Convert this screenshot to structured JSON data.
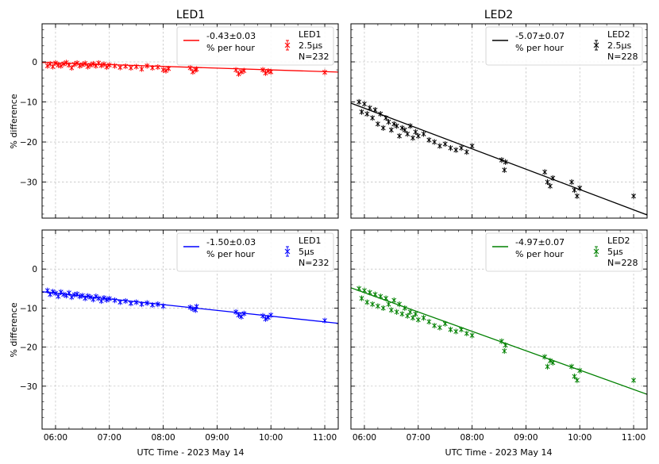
{
  "figure": {
    "xlabel": "UTC Time - 2023 May 14",
    "ylabel": "% difference",
    "col_titles": [
      "LED1",
      "LED2"
    ]
  },
  "chart_data": [
    {
      "type": "scatter",
      "title": "LED1",
      "color": "#ff0000",
      "legend": {
        "slope_text": "-0.43±0.03",
        "unit_text": "% per hour",
        "led": "LED1",
        "width": "2.5μs",
        "n": "N=232"
      },
      "slope": -0.43,
      "xlim": [
        5.75,
        11.25
      ],
      "ylim": [
        -39,
        9.5
      ],
      "x_ticks": [
        6,
        7,
        8,
        9,
        10,
        11
      ],
      "x_tick_labels": [
        "06:00",
        "07:00",
        "08:00",
        "09:00",
        "10:00",
        "11:00"
      ],
      "y_ticks": [
        0,
        -10,
        -20,
        -30
      ],
      "y_tick_labels": [
        "0",
        "−10",
        "−20",
        "−30"
      ],
      "fit_line": {
        "x": [
          5.75,
          11.25
        ],
        "y": [
          -0.15,
          -2.55
        ]
      },
      "series": [
        {
          "name": "LED1 2.5μs N=232 (sampled)",
          "x": [
            5.85,
            5.9,
            5.95,
            6.0,
            6.05,
            6.1,
            6.15,
            6.2,
            6.25,
            6.3,
            6.35,
            6.4,
            6.45,
            6.5,
            6.55,
            6.6,
            6.65,
            6.7,
            6.75,
            6.8,
            6.85,
            6.9,
            6.95,
            7.0,
            7.1,
            7.2,
            7.3,
            7.4,
            7.5,
            7.6,
            7.7,
            7.8,
            7.9,
            8.0,
            8.05,
            8.1,
            8.5,
            8.55,
            8.6,
            8.62,
            9.35,
            9.4,
            9.45,
            9.5,
            9.85,
            9.9,
            9.95,
            10.0,
            11.0
          ],
          "y": [
            -1.0,
            -0.5,
            -1.2,
            -0.3,
            -0.8,
            -1.0,
            -0.5,
            -0.2,
            -0.8,
            -1.5,
            -0.6,
            -0.3,
            -1.0,
            -0.7,
            -0.4,
            -1.2,
            -0.8,
            -0.5,
            -1.0,
            -0.3,
            -0.9,
            -0.6,
            -1.3,
            -0.8,
            -1.0,
            -1.4,
            -1.1,
            -1.5,
            -1.2,
            -1.8,
            -1.0,
            -1.5,
            -1.3,
            -2.0,
            -2.2,
            -1.7,
            -1.5,
            -2.5,
            -2.0,
            -1.8,
            -2.0,
            -3.0,
            -2.5,
            -2.2,
            -2.0,
            -2.8,
            -2.3,
            -2.5,
            -2.6
          ]
        }
      ]
    },
    {
      "type": "scatter",
      "title": "LED2",
      "color": "#000000",
      "legend": {
        "slope_text": "-5.07±0.07",
        "unit_text": "% per hour",
        "led": "LED2",
        "width": "2.5μs",
        "n": "N=228"
      },
      "slope": -5.07,
      "xlim": [
        5.75,
        11.25
      ],
      "ylim": [
        -39,
        9.5
      ],
      "x_ticks": [
        6,
        7,
        8,
        9,
        10,
        11
      ],
      "x_tick_labels": [
        "06:00",
        "07:00",
        "08:00",
        "09:00",
        "10:00",
        "11:00"
      ],
      "y_ticks": [
        0,
        -10,
        -20,
        -30
      ],
      "y_tick_labels": [
        "0",
        "−10",
        "−20",
        "−30"
      ],
      "fit_line": {
        "x": [
          5.75,
          11.25
        ],
        "y": [
          -10.3,
          -38.2
        ]
      },
      "series": [
        {
          "name": "LED2 2.5μs N=228 (sampled)",
          "x": [
            5.9,
            5.95,
            6.0,
            6.05,
            6.1,
            6.15,
            6.2,
            6.25,
            6.3,
            6.35,
            6.4,
            6.45,
            6.5,
            6.55,
            6.6,
            6.65,
            6.7,
            6.75,
            6.8,
            6.85,
            6.9,
            6.95,
            7.0,
            7.1,
            7.2,
            7.3,
            7.4,
            7.5,
            7.6,
            7.7,
            7.8,
            7.9,
            8.0,
            8.55,
            8.6,
            8.62,
            9.35,
            9.4,
            9.45,
            9.5,
            9.85,
            9.9,
            9.95,
            10.0,
            11.0
          ],
          "y": [
            -10.0,
            -12.5,
            -10.5,
            -13.0,
            -11.5,
            -14.0,
            -12.0,
            -15.5,
            -13.0,
            -16.5,
            -14.0,
            -15.0,
            -17.0,
            -15.5,
            -16.0,
            -18.5,
            -16.5,
            -17.0,
            -18.0,
            -16.0,
            -19.0,
            -17.5,
            -18.5,
            -18.0,
            -19.5,
            -20.0,
            -21.0,
            -20.5,
            -21.5,
            -22.0,
            -21.5,
            -22.5,
            -21.0,
            -24.5,
            -27.0,
            -25.0,
            -27.5,
            -30.0,
            -31.0,
            -29.0,
            -30.0,
            -32.0,
            -33.5,
            -31.5,
            -33.5
          ]
        }
      ]
    },
    {
      "type": "scatter",
      "title": "",
      "color": "#0000ff",
      "legend": {
        "slope_text": "-1.50±0.03",
        "unit_text": "% per hour",
        "led": "LED1",
        "width": "5μs",
        "n": "N=232"
      },
      "slope": -1.5,
      "xlim": [
        5.75,
        11.25
      ],
      "ylim": [
        -41,
        10
      ],
      "x_ticks": [
        6,
        7,
        8,
        9,
        10,
        11
      ],
      "x_tick_labels": [
        "06:00",
        "07:00",
        "08:00",
        "09:00",
        "10:00",
        "11:00"
      ],
      "y_ticks": [
        0,
        -10,
        -20,
        -30
      ],
      "y_tick_labels": [
        "0",
        "−10",
        "−20",
        "−30"
      ],
      "fit_line": {
        "x": [
          5.75,
          11.25
        ],
        "y": [
          -5.8,
          -13.9
        ]
      },
      "series": [
        {
          "name": "LED1 5μs N=232 (sampled)",
          "x": [
            5.85,
            5.9,
            5.95,
            6.0,
            6.05,
            6.1,
            6.15,
            6.2,
            6.25,
            6.3,
            6.35,
            6.4,
            6.45,
            6.5,
            6.55,
            6.6,
            6.65,
            6.7,
            6.75,
            6.8,
            6.85,
            6.9,
            6.95,
            7.0,
            7.1,
            7.2,
            7.3,
            7.4,
            7.5,
            7.6,
            7.7,
            7.8,
            7.9,
            8.0,
            8.5,
            8.55,
            8.6,
            8.62,
            9.35,
            9.4,
            9.45,
            9.5,
            9.85,
            9.9,
            9.95,
            10.0,
            11.0
          ],
          "y": [
            -5.5,
            -6.5,
            -5.8,
            -6.2,
            -7.0,
            -5.9,
            -6.5,
            -6.8,
            -6.1,
            -7.2,
            -6.6,
            -6.4,
            -7.0,
            -6.8,
            -7.5,
            -6.9,
            -7.2,
            -7.8,
            -7.0,
            -7.5,
            -8.2,
            -7.4,
            -7.9,
            -7.6,
            -8.0,
            -8.5,
            -8.2,
            -8.8,
            -8.5,
            -9.0,
            -8.7,
            -9.2,
            -9.0,
            -9.5,
            -9.8,
            -10.2,
            -10.5,
            -9.6,
            -11.0,
            -11.8,
            -12.2,
            -11.4,
            -12.0,
            -12.8,
            -12.4,
            -11.8,
            -13.2
          ]
        }
      ]
    },
    {
      "type": "scatter",
      "title": "",
      "color": "#008000",
      "legend": {
        "slope_text": "-4.97±0.07",
        "unit_text": "% per hour",
        "led": "LED2",
        "width": "5μs",
        "n": "N=228"
      },
      "slope": -4.97,
      "xlim": [
        5.75,
        11.25
      ],
      "ylim": [
        -41,
        10
      ],
      "x_ticks": [
        6,
        7,
        8,
        9,
        10,
        11
      ],
      "x_tick_labels": [
        "06:00",
        "07:00",
        "08:00",
        "09:00",
        "10:00",
        "11:00"
      ],
      "y_ticks": [
        0,
        -10,
        -20,
        -30
      ],
      "y_tick_labels": [
        "0",
        "−10",
        "−20",
        "−30"
      ],
      "fit_line": {
        "x": [
          5.75,
          11.25
        ],
        "y": [
          -4.8,
          -32.1
        ]
      },
      "series": [
        {
          "name": "LED2 5μs N=228 (sampled)",
          "x": [
            5.9,
            5.95,
            6.0,
            6.05,
            6.1,
            6.15,
            6.2,
            6.25,
            6.3,
            6.35,
            6.4,
            6.45,
            6.5,
            6.55,
            6.6,
            6.65,
            6.7,
            6.75,
            6.8,
            6.85,
            6.9,
            6.95,
            7.0,
            7.1,
            7.2,
            7.3,
            7.4,
            7.5,
            7.6,
            7.7,
            7.8,
            7.9,
            8.0,
            8.55,
            8.6,
            8.62,
            9.35,
            9.4,
            9.45,
            9.5,
            9.85,
            9.9,
            9.95,
            10.0,
            11.0
          ],
          "y": [
            -5.0,
            -7.5,
            -5.5,
            -8.5,
            -6.0,
            -9.0,
            -6.5,
            -9.5,
            -7.0,
            -10.0,
            -7.5,
            -9.0,
            -10.5,
            -8.0,
            -11.0,
            -9.0,
            -11.5,
            -10.0,
            -12.0,
            -11.0,
            -12.5,
            -11.5,
            -13.0,
            -12.5,
            -13.5,
            -14.5,
            -15.0,
            -14.0,
            -15.5,
            -16.0,
            -15.5,
            -16.5,
            -17.0,
            -18.5,
            -21.0,
            -19.5,
            -22.5,
            -25.0,
            -23.5,
            -24.0,
            -25.0,
            -27.5,
            -28.5,
            -26.0,
            -28.5
          ]
        }
      ]
    }
  ]
}
